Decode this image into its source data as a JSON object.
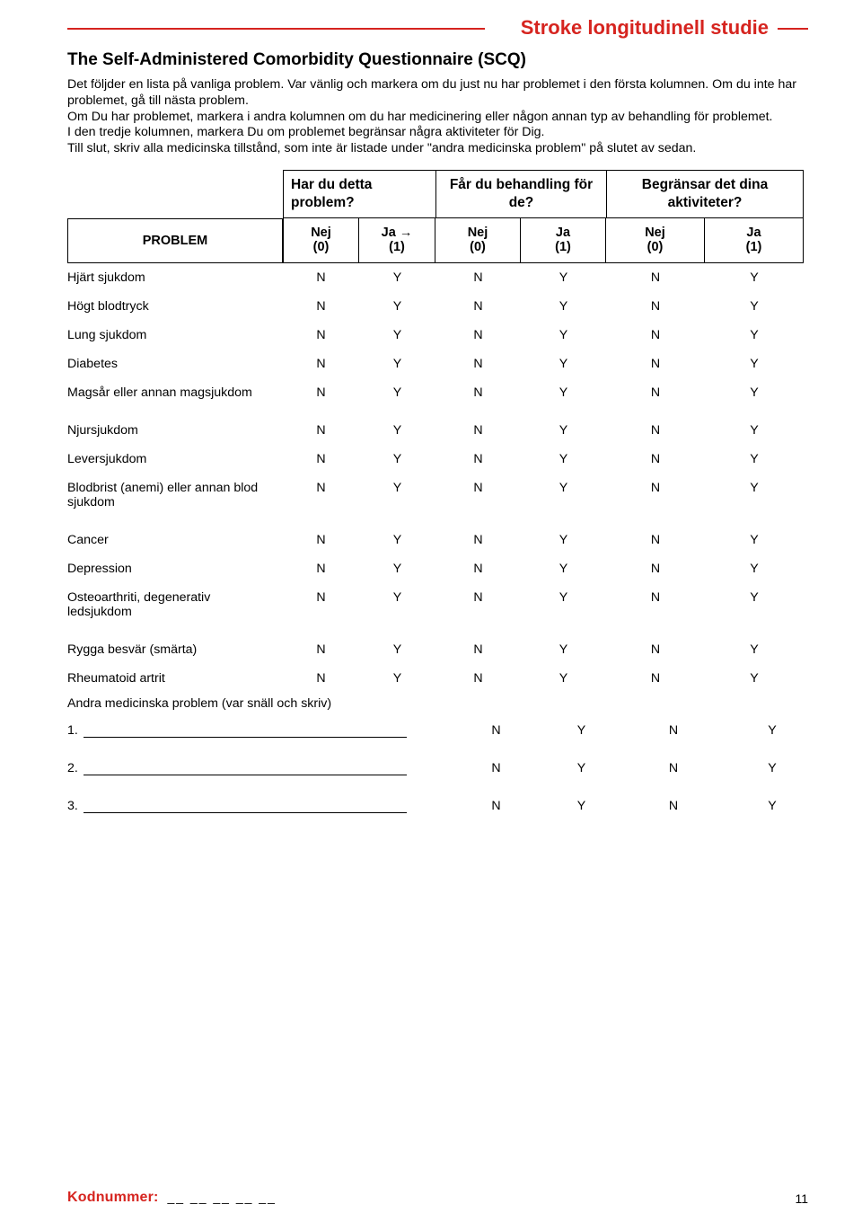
{
  "header": {
    "study_title": "Stroke longitudinell studie",
    "section_title": "The Self-Administered Comorbidity Questionnaire (SCQ)"
  },
  "intro": {
    "p1": "Det följder en lista på vanliga problem. Var vänlig och markera om du just nu har problemet i den första kolumnen. Om du inte har problemet, gå till nästa problem.",
    "p2": "Om Du har problemet, markera i andra kolumnen om du har medicinering eller någon annan typ av behandling för problemet.",
    "p3": "I den tredje kolumnen, markera Du om problemet begränsar några aktiviteter för Dig.",
    "p4": "Till slut, skriv alla medicinska tillstånd, som inte är listade under \"andra medicinska problem\" på slutet av sedan."
  },
  "columns": {
    "q1": "Har du detta problem?",
    "q2": "Får du behandling för de?",
    "q3": "Begränsar det dina aktiviteter?",
    "problem_label": "PROBLEM",
    "nej_label": "Nej",
    "nej_score": "(0)",
    "ja_label": "Ja",
    "ja_arrow_label": "Ja →",
    "ja_score": "(1)"
  },
  "options": {
    "N": "N",
    "Y": "Y"
  },
  "problems": [
    {
      "label": "Hjärt sjukdom",
      "tall": false
    },
    {
      "label": "Högt blodtryck",
      "tall": false
    },
    {
      "label": "Lung sjukdom",
      "tall": false
    },
    {
      "label": "Diabetes",
      "tall": false
    },
    {
      "label": "Magsår eller annan magsjukdom",
      "tall": true
    },
    {
      "label": "Njursjukdom",
      "tall": false
    },
    {
      "label": "Leversjukdom",
      "tall": false
    },
    {
      "label": "Blodbrist (anemi) eller annan blod sjukdom",
      "tall": true
    },
    {
      "label": "Cancer",
      "tall": false
    },
    {
      "label": "Depression",
      "tall": false
    },
    {
      "label": "Osteoarthriti, degenerativ ledsjukdom",
      "tall": true
    },
    {
      "label": "Rygga besvär (smärta)",
      "tall": false
    },
    {
      "label": "Rheumatoid artrit",
      "tall": false
    }
  ],
  "other": {
    "heading": "Andra medicinska problem (var snäll och skriv)",
    "items": [
      "1.",
      "2.",
      "3."
    ]
  },
  "footer": {
    "kod_label": "Kodnummer:",
    "slots": "__ __ __ __ __",
    "page_number": "11"
  },
  "colors": {
    "accent": "#d6241f",
    "text": "#000000",
    "background": "#ffffff"
  }
}
